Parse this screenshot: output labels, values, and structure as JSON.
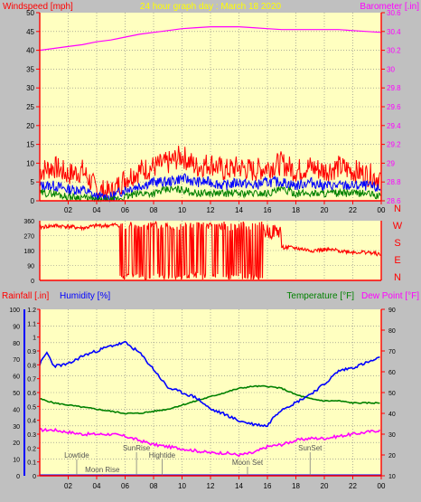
{
  "header": {
    "left": "Windspeed [mph]",
    "center": "24 hour graph day : March 18 2020",
    "right": "Barometer [.in]"
  },
  "colors": {
    "background": "#c0c0c0",
    "plot_bg": "#ffffc0",
    "axis": "#ff0000",
    "windspeed": "#ff0000",
    "windspeed_avg": "#0000ff",
    "windspeed_min": "#008000",
    "barometer": "#ff00ff",
    "direction": "#ff0000",
    "humidity": "#0000ff",
    "temperature": "#008000",
    "dewpoint": "#ff00ff",
    "rainfall": "#0000ff"
  },
  "chart_data": [
    {
      "type": "line",
      "name": "wind-baro",
      "x_ticks": [
        "02",
        "04",
        "06",
        "08",
        "10",
        "12",
        "14",
        "16",
        "18",
        "20",
        "22",
        "00"
      ],
      "left_ticks": [
        "0",
        "5",
        "10",
        "15",
        "20",
        "25",
        "30",
        "35",
        "40",
        "45",
        "50"
      ],
      "right_ticks": [
        "28.6",
        "28.8",
        "29",
        "29.2",
        "29.4",
        "29.6",
        "29.8",
        "30",
        "30.2",
        "30.4",
        "30.6"
      ],
      "ylim_left": [
        0,
        50
      ],
      "ylim_right": [
        28.6,
        30.6
      ],
      "barometer": {
        "x": [
          0,
          1,
          2,
          3,
          4,
          5,
          6,
          7,
          8,
          9,
          10,
          11,
          12,
          13,
          14,
          15,
          16,
          17,
          18,
          19,
          20,
          21,
          22,
          23,
          24
        ],
        "y": [
          30.2,
          30.22,
          30.24,
          30.26,
          30.29,
          30.31,
          30.34,
          30.37,
          30.39,
          30.41,
          30.43,
          30.44,
          30.45,
          30.45,
          30.45,
          30.44,
          30.43,
          30.42,
          30.42,
          30.42,
          30.42,
          30.42,
          30.41,
          30.4,
          30.39
        ]
      },
      "wind_envelope": {
        "x": [
          0,
          1,
          2,
          3,
          4,
          5,
          6,
          7,
          8,
          9,
          10,
          11,
          12,
          13,
          14,
          15,
          16,
          17,
          18,
          19,
          20,
          21,
          22,
          23,
          24
        ],
        "gust": [
          8,
          9,
          7,
          8,
          3,
          2,
          6,
          8,
          9,
          10,
          12,
          9,
          10,
          8,
          9,
          8,
          9,
          10,
          8,
          9,
          8,
          9,
          8,
          7,
          6
        ],
        "avg": [
          4,
          4,
          3,
          3,
          1,
          1,
          3,
          4,
          5,
          5,
          6,
          5,
          5,
          4,
          5,
          4,
          5,
          5,
          4,
          5,
          4,
          4,
          4,
          4,
          3
        ],
        "min": [
          2,
          2,
          1,
          1,
          0,
          0,
          1,
          2,
          2,
          3,
          3,
          2,
          2,
          2,
          2,
          2,
          2,
          3,
          2,
          2,
          2,
          2,
          2,
          2,
          1
        ]
      }
    },
    {
      "type": "line",
      "name": "wind-direction",
      "left_ticks": [
        "0",
        "90",
        "180",
        "270",
        "360"
      ],
      "right_labels": [
        "N",
        "W",
        "S",
        "E",
        "N"
      ],
      "ylim": [
        0,
        360
      ],
      "x": [
        0,
        1,
        2,
        3,
        4,
        5,
        5.5,
        6.5,
        7.5,
        8.5,
        9.5,
        10.5,
        11.5,
        12.5,
        13.5,
        14.5,
        15.5,
        16,
        17,
        18,
        19,
        20,
        21,
        22,
        23,
        24
      ],
      "y": [
        320,
        330,
        325,
        315,
        330,
        330,
        340,
        180,
        20,
        300,
        40,
        280,
        30,
        310,
        20,
        300,
        60,
        280,
        200,
        195,
        180,
        185,
        180,
        170,
        170,
        155
      ]
    },
    {
      "type": "line",
      "name": "humidity-temperature",
      "left_header": "Rainfall [.in]",
      "left_header_2": "Humidity [%]",
      "right_header": "Temperature [°F]",
      "right_header_2": "Dew Point [°F]",
      "humidity_ticks": [
        "0",
        "10",
        "20",
        "30",
        "40",
        "50",
        "60",
        "70",
        "80",
        "90",
        "100"
      ],
      "rain_ticks": [
        "0",
        "0.1",
        "0.2",
        "0.3",
        "0.4",
        "0.5",
        "0.6",
        "0.7",
        "0.8",
        "0.9",
        "1",
        "1.1",
        "1.2"
      ],
      "temp_ticks": [
        "10",
        "20",
        "30",
        "40",
        "50",
        "60",
        "70",
        "80",
        "90"
      ],
      "x_ticks": [
        "02",
        "04",
        "06",
        "08",
        "10",
        "12",
        "14",
        "16",
        "18",
        "20",
        "22",
        "00"
      ],
      "ylim_humidity": [
        0,
        100
      ],
      "ylim_temp": [
        10,
        90
      ],
      "humidity": {
        "x": [
          0,
          0.5,
          1,
          2,
          3,
          4,
          5,
          6,
          7,
          8,
          9,
          10,
          11,
          12,
          13,
          14,
          15,
          16,
          16.5,
          17,
          18,
          19,
          20,
          21,
          22,
          23,
          24
        ],
        "y": [
          67,
          74,
          66,
          67,
          72,
          75,
          78,
          80,
          74,
          64,
          53,
          50,
          47,
          40,
          37,
          33,
          31,
          30,
          36,
          40,
          44,
          49,
          55,
          63,
          65,
          68,
          71
        ]
      },
      "temperature": {
        "x": [
          0,
          1,
          2,
          3,
          4,
          5,
          6,
          7,
          8,
          9,
          10,
          11,
          12,
          13,
          14,
          15,
          16,
          17,
          18,
          19,
          20,
          21,
          22,
          23,
          24
        ],
        "y": [
          47,
          45,
          44,
          43,
          42,
          41,
          40,
          40,
          41,
          42,
          44,
          46,
          48,
          50,
          52,
          53,
          53,
          52,
          49,
          47,
          46,
          46,
          45,
          45,
          45
        ]
      },
      "dewpoint": {
        "x": [
          0,
          1,
          2,
          3,
          4,
          5,
          6,
          7,
          8,
          9,
          10,
          11,
          12,
          13,
          14,
          15,
          16,
          17,
          18,
          19,
          20,
          21,
          22,
          23,
          24
        ],
        "y": [
          32,
          32,
          31,
          30,
          30,
          30,
          29,
          27,
          25,
          24,
          23,
          22,
          21,
          21,
          20,
          21,
          24,
          25,
          27,
          28,
          28,
          29,
          30,
          31,
          32
        ]
      },
      "rainfall": {
        "x": [
          0,
          24
        ],
        "y": [
          0,
          0
        ]
      },
      "events": [
        {
          "label": "Lowtide",
          "x": 2.6,
          "row": 3
        },
        {
          "label": "Moon Rise",
          "x": 4.4,
          "row": 1
        },
        {
          "label": "SunRise",
          "x": 6.8,
          "row": 4
        },
        {
          "label": "Hightide",
          "x": 8.6,
          "row": 3
        },
        {
          "label": "Moon Set",
          "x": 14.6,
          "row": 2
        },
        {
          "label": "SunSet",
          "x": 19.0,
          "row": 4
        }
      ]
    }
  ]
}
